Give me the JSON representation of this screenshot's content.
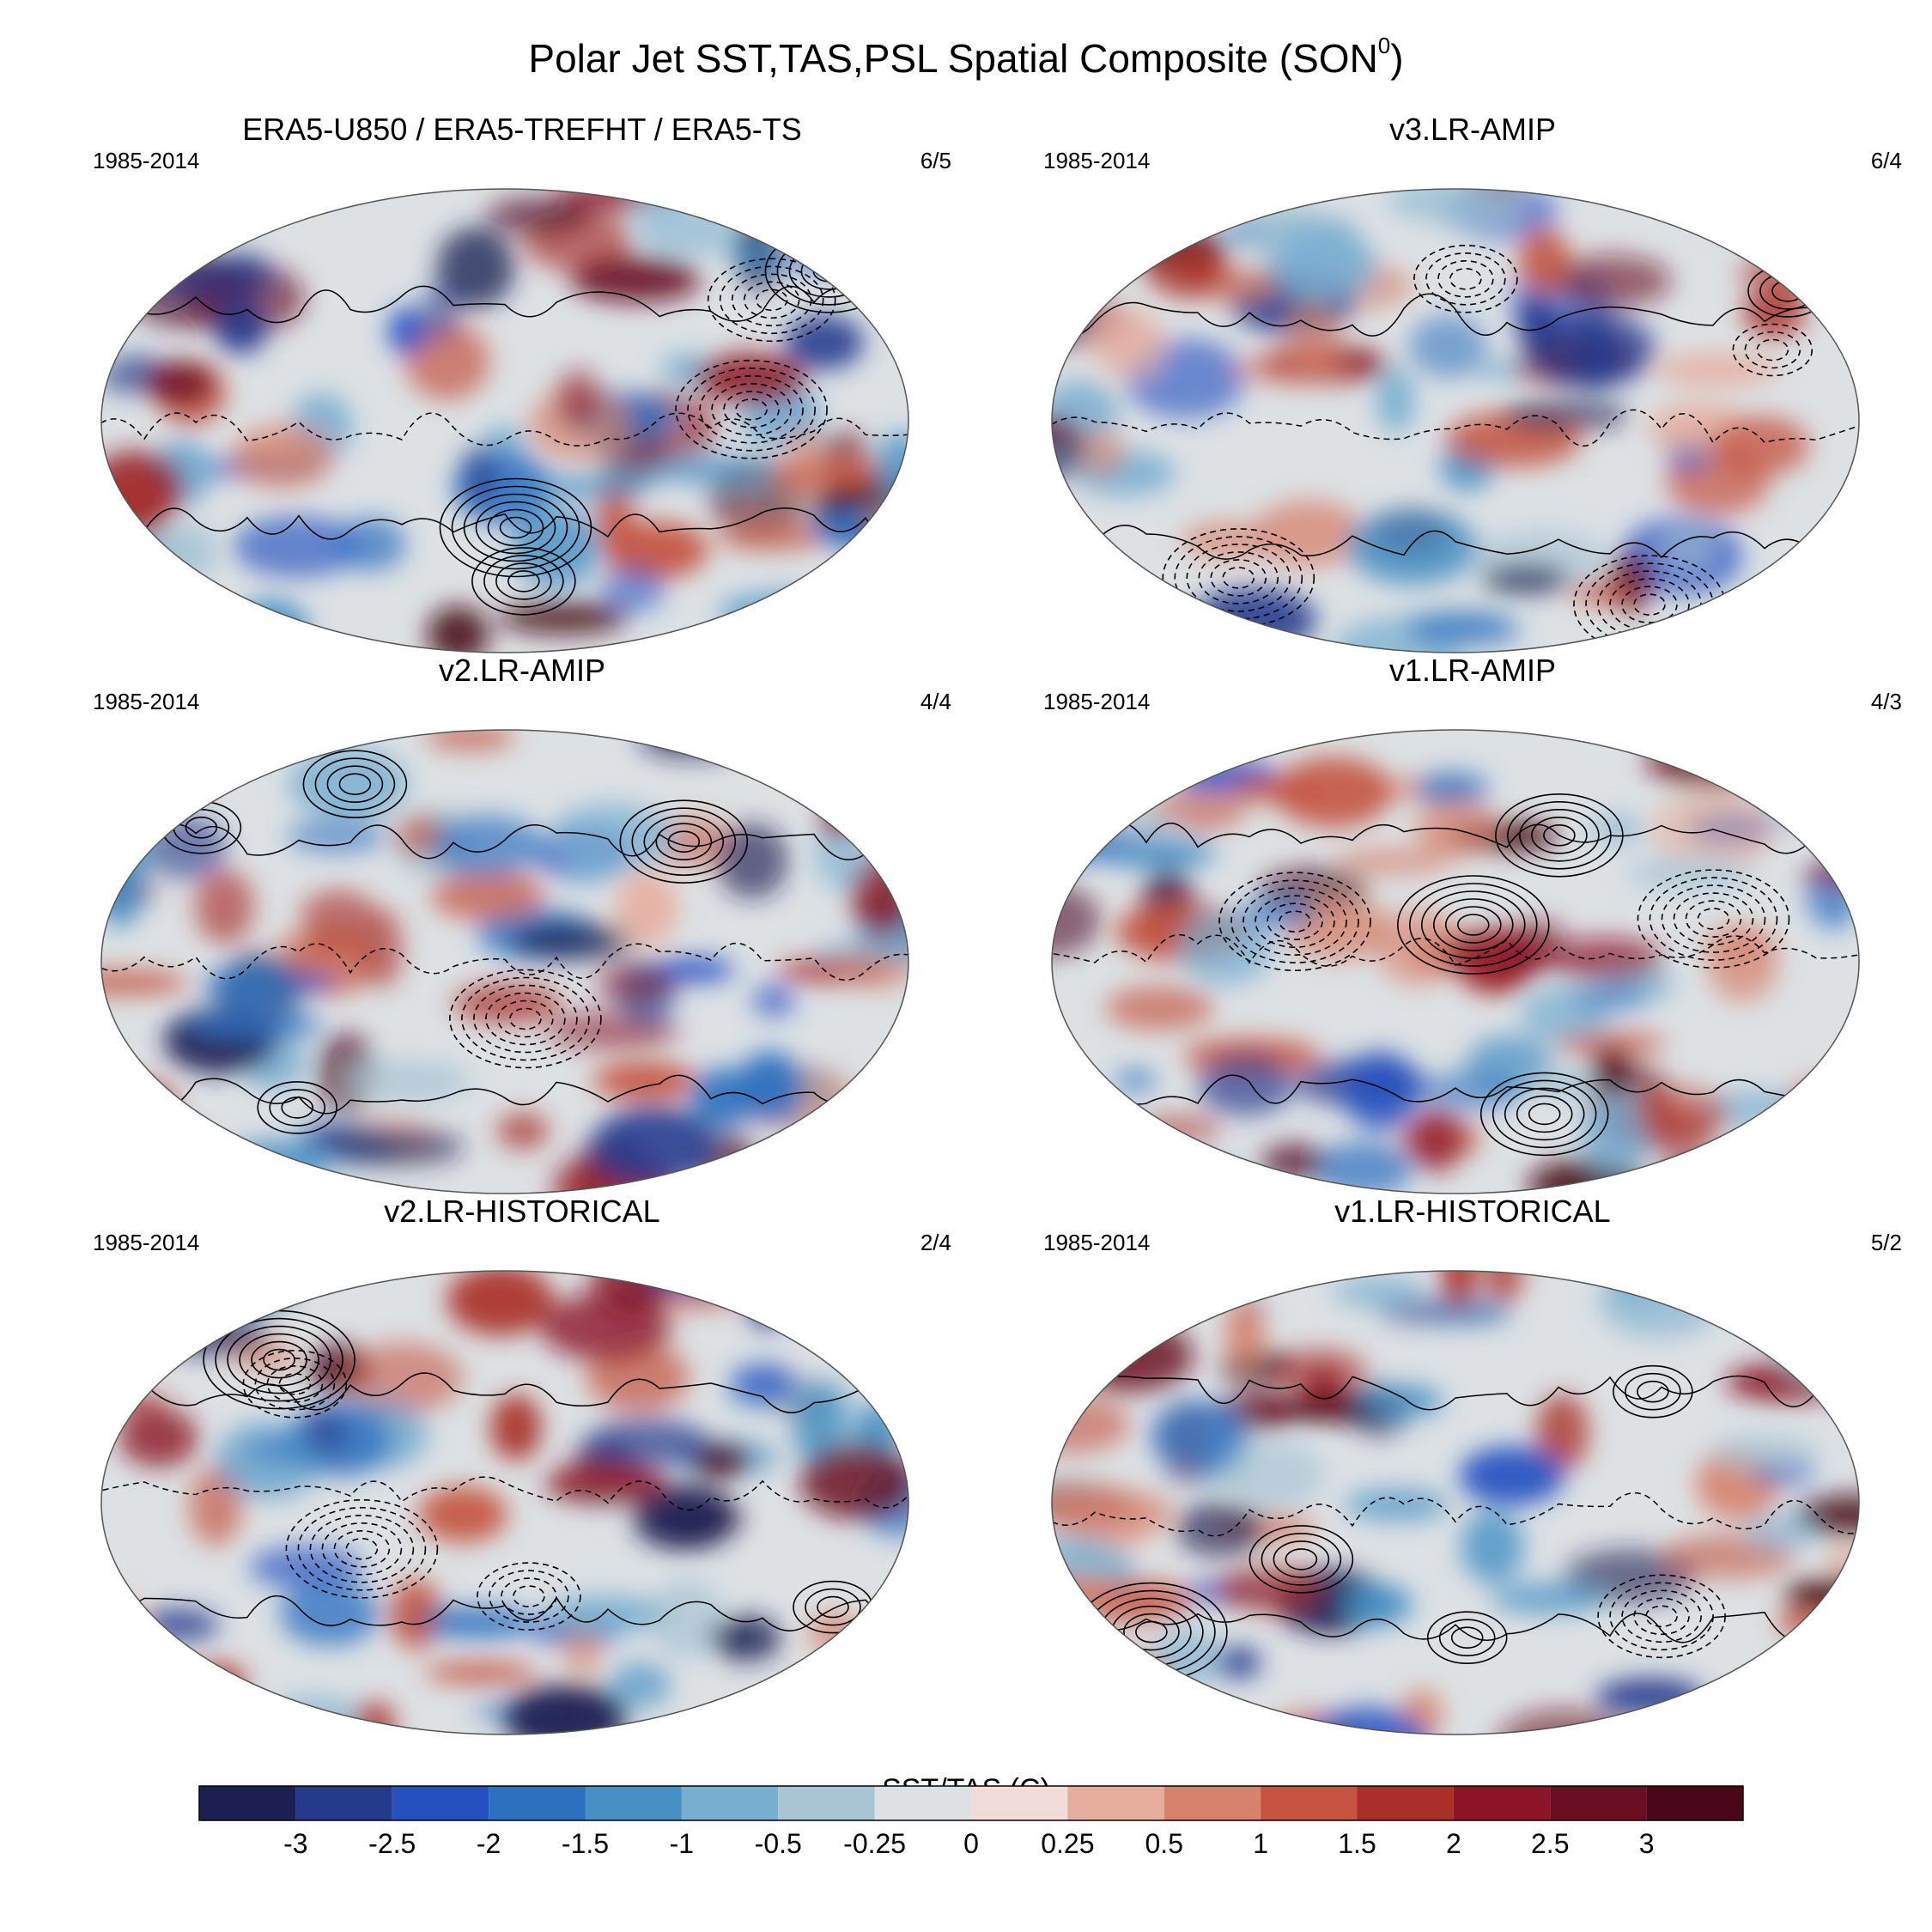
{
  "title": "Polar Jet SST,TAS,PSL Spatial Composite (SON",
  "title_sup": "0",
  "title_close": ")",
  "panels": [
    {
      "title": "ERA5-U850 / ERA5-TREFHT / ERA5-TS",
      "years": "1985-2014",
      "count": "6/5"
    },
    {
      "title": "v3.LR-AMIP",
      "years": "1985-2014",
      "count": "6/4"
    },
    {
      "title": "v2.LR-AMIP",
      "years": "1985-2014",
      "count": "4/4"
    },
    {
      "title": "v1.LR-AMIP",
      "years": "1985-2014",
      "count": "4/3"
    },
    {
      "title": "v2.LR-HISTORICAL",
      "years": "1985-2014",
      "count": "2/4"
    },
    {
      "title": "v1.LR-HISTORICAL",
      "years": "1985-2014",
      "count": "5/2"
    }
  ],
  "colorbar": {
    "title": "SST/TAS (C)",
    "labels": [
      "-3",
      "-2.5",
      "-2",
      "-1.5",
      "-1",
      "-0.5",
      "-0.25",
      "0",
      "0.25",
      "0.5",
      "1",
      "1.5",
      "2",
      "2.5",
      "3"
    ],
    "colors": [
      "#1c1f52",
      "#263a8c",
      "#2450c0",
      "#2c70c0",
      "#4690c4",
      "#78aed0",
      "#a9c5d4",
      "#dde1e4",
      "#f2dcd8",
      "#e6ad9d",
      "#d6826c",
      "#c4533f",
      "#a92f28",
      "#8b1526",
      "#6a0f22",
      "#48081a"
    ]
  }
}
